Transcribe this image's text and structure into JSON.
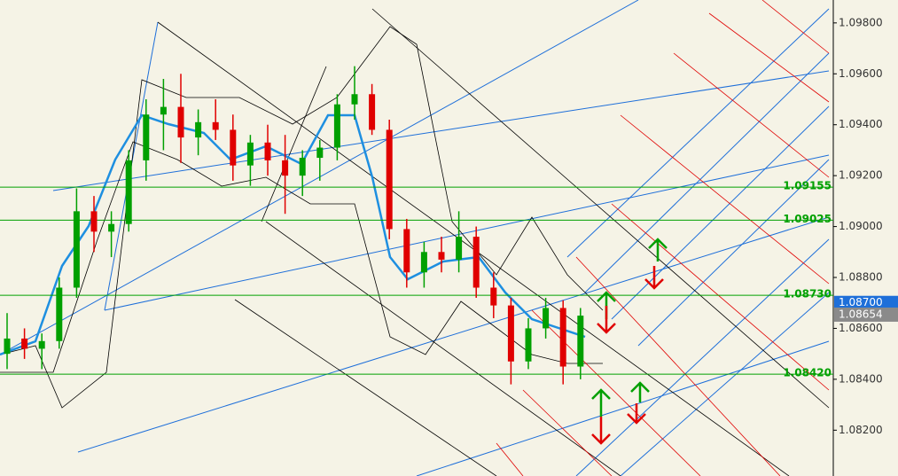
{
  "chart_data": {
    "type": "candlestick",
    "up_color": "#00a000",
    "down_color": "#e00000",
    "ylim": [
      1.0802,
      1.0989
    ],
    "yticks": [
      {
        "value": 1.082,
        "label": "1.08200"
      },
      {
        "value": 1.084,
        "label": "1.08400"
      },
      {
        "value": 1.086,
        "label": "1.08600"
      },
      {
        "value": 1.088,
        "label": "1.08800"
      },
      {
        "value": 1.09,
        "label": "1.09000"
      },
      {
        "value": 1.092,
        "label": "1.09200"
      },
      {
        "value": 1.094,
        "label": "1.09400"
      },
      {
        "value": 1.096,
        "label": "1.09600"
      },
      {
        "value": 1.098,
        "label": "1.09800"
      }
    ],
    "open": [
      1.085,
      1.0856,
      1.0852,
      1.0855,
      1.0876,
      1.0906,
      1.0898,
      1.0901,
      1.0926,
      1.0944,
      1.0947,
      1.0935,
      1.0941,
      1.0938,
      1.0924,
      1.0933,
      1.0926,
      1.092,
      1.0927,
      1.0931,
      1.0948,
      1.0952,
      1.0938,
      1.0899,
      1.0882,
      1.089,
      1.0887,
      1.0896,
      1.0876,
      1.0869,
      1.0847,
      1.086,
      1.0868,
      1.0845
    ],
    "high": [
      1.0866,
      1.086,
      1.0858,
      1.088,
      1.0915,
      1.0912,
      1.0906,
      1.093,
      1.095,
      1.0958,
      1.096,
      1.0946,
      1.095,
      1.0944,
      1.0936,
      1.094,
      1.0936,
      1.093,
      1.0934,
      1.0952,
      1.0963,
      1.0956,
      1.0942,
      1.0903,
      1.0894,
      1.0896,
      1.0906,
      1.09,
      1.0882,
      1.0872,
      1.0864,
      1.0872,
      1.0871,
      1.0868
    ],
    "low": [
      1.0844,
      1.0848,
      1.0844,
      1.0852,
      1.0872,
      1.089,
      1.0888,
      1.0898,
      1.0918,
      1.093,
      1.0925,
      1.0928,
      1.0934,
      1.0918,
      1.0916,
      1.092,
      1.0905,
      1.0912,
      1.0918,
      1.0926,
      1.0942,
      1.0936,
      1.0895,
      1.0876,
      1.0876,
      1.0882,
      1.0882,
      1.0872,
      1.0864,
      1.0838,
      1.0844,
      1.0856,
      1.0838,
      1.084
    ],
    "close": [
      1.0856,
      1.0852,
      1.0855,
      1.0876,
      1.0906,
      1.0898,
      1.0901,
      1.0926,
      1.0944,
      1.0947,
      1.0935,
      1.0941,
      1.0938,
      1.0924,
      1.0933,
      1.0926,
      1.092,
      1.0927,
      1.0931,
      1.0948,
      1.0952,
      1.0938,
      1.0899,
      1.0882,
      1.089,
      1.0887,
      1.0896,
      1.0876,
      1.0869,
      1.0847,
      1.086,
      1.0868,
      1.0845,
      1.0865
    ],
    "levels": [
      {
        "value": 1.09155,
        "label": "1.09155"
      },
      {
        "value": 1.09025,
        "label": "1.09025"
      },
      {
        "value": 1.0873,
        "label": "1.08730"
      },
      {
        "value": 1.0842,
        "label": "1.08420"
      }
    ],
    "level_color": "#00a000",
    "price_tags": [
      {
        "value": 1.087,
        "label": "1.08700",
        "color": "#1e6fd9"
      },
      {
        "value": 1.08654,
        "label": "1.08654",
        "color": "#8a8a8a"
      }
    ]
  }
}
